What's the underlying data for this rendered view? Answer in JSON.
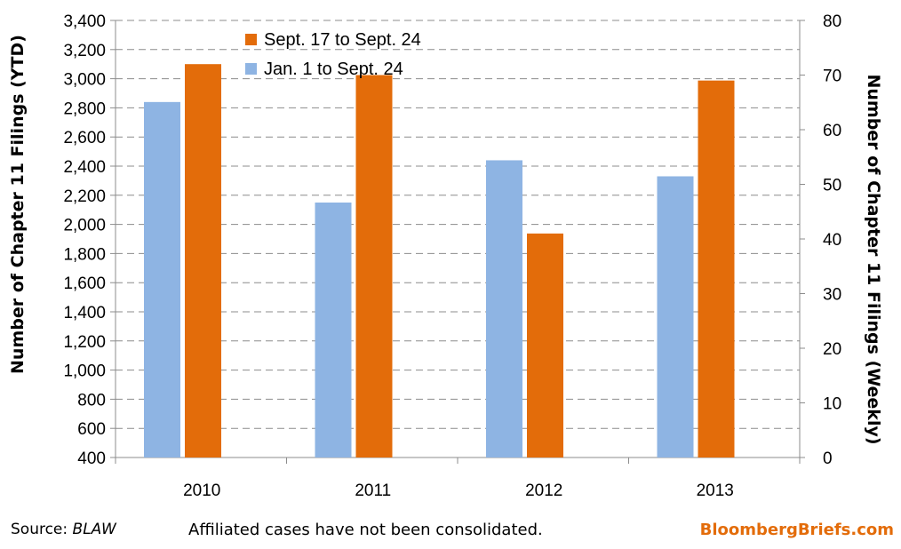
{
  "chart_data": {
    "type": "bar",
    "categories": [
      "2010",
      "2011",
      "2012",
      "2013"
    ],
    "series": [
      {
        "name": "Jan. 1 to Sept. 24",
        "axis": "left",
        "color": "#8EB4E3",
        "values": [
          2840,
          2150,
          2440,
          2330
        ]
      },
      {
        "name": "Sept. 17 to Sept. 24",
        "axis": "right",
        "color": "#E36C0A",
        "values": [
          72,
          70,
          41,
          69
        ]
      }
    ],
    "ylabel": "Number of Chapter 11 Filings  (YTD)",
    "ylabel_right": "Number of Chapter 11 Filings (Weekly)",
    "ylim": [
      400,
      3400
    ],
    "ylim_right": [
      0,
      80
    ],
    "y_ticks": [
      400,
      600,
      800,
      1000,
      1200,
      1400,
      1600,
      1800,
      2000,
      2200,
      2400,
      2600,
      2800,
      3000,
      3200,
      3400
    ],
    "y_tick_labels": [
      "400",
      "600",
      "800",
      "1,000",
      "1,200",
      "1,400",
      "1,600",
      "1,800",
      "2,000",
      "2,200",
      "2,400",
      "2,600",
      "2,800",
      "3,000",
      "3,200",
      "3,400"
    ],
    "y_ticks_right": [
      0,
      10,
      20,
      30,
      40,
      50,
      60,
      70,
      80
    ],
    "grid": "horizontal dashed",
    "legend": {
      "placement": "top-left",
      "order": [
        "Sept. 17 to Sept. 24",
        "Jan. 1 to Sept. 24"
      ]
    }
  },
  "footer": {
    "source_label": "Source: ",
    "source_value": "BLAW",
    "note": "Affiliated cases have not been consolidated.",
    "brand": "BloombergBriefs.com",
    "brand_color": "#E36C0A"
  }
}
